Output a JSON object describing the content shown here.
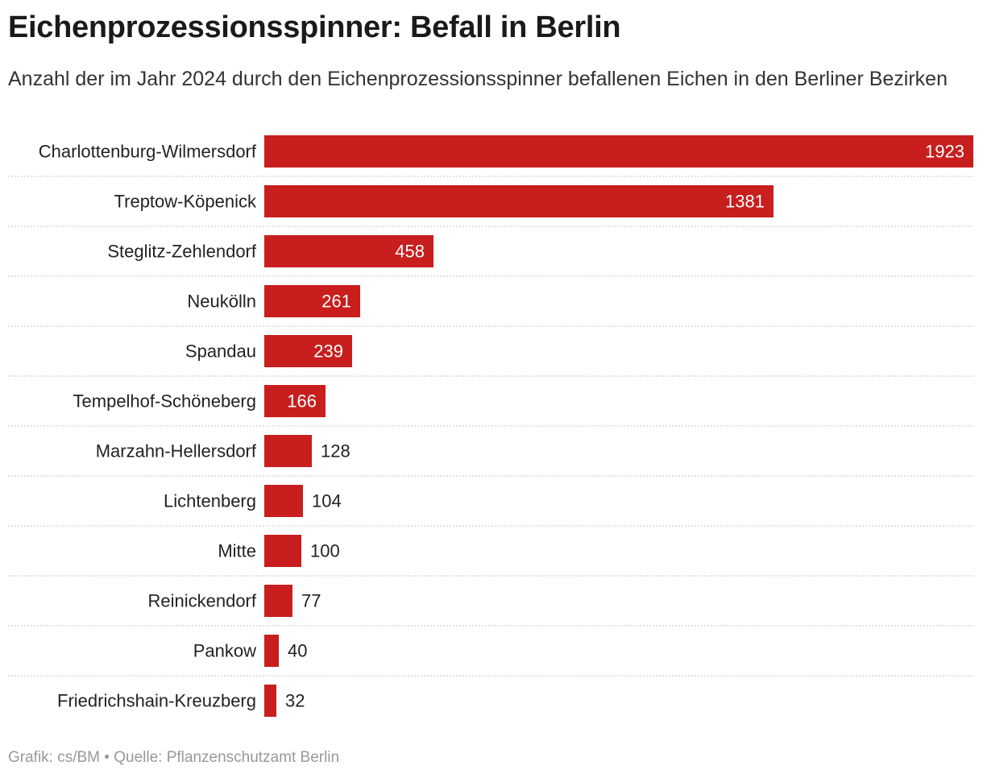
{
  "title": "Eichenprozessionsspinner: Befall in Berlin",
  "subtitle": "Anzahl der im Jahr 2024 durch den Eichenprozessionsspinner befallenen Eichen in den Berliner Bezirken",
  "footer": {
    "credit": "Grafik: cs/BM",
    "separator": "•",
    "source": "Quelle: Pflanzenschutzamt Berlin"
  },
  "colors": {
    "bar": "#c81e1e",
    "label_inside": "#ffffff",
    "label_outside": "#222222"
  },
  "chart_data": {
    "type": "bar",
    "orientation": "horizontal",
    "title": "Eichenprozessionsspinner: Befall in Berlin",
    "xlabel": "",
    "ylabel": "",
    "xlim": [
      0,
      1923
    ],
    "grid": false,
    "categories": [
      "Charlottenburg-Wilmersdorf",
      "Treptow-Köpenick",
      "Steglitz-Zehlendorf",
      "Neukölln",
      "Spandau",
      "Tempelhof-Schöneberg",
      "Marzahn-Hellersdorf",
      "Lichtenberg",
      "Mitte",
      "Reinickendorf",
      "Pankow",
      "Friedrichshain-Kreuzberg"
    ],
    "values": [
      1923,
      1381,
      458,
      261,
      239,
      166,
      128,
      104,
      100,
      77,
      40,
      32
    ]
  }
}
